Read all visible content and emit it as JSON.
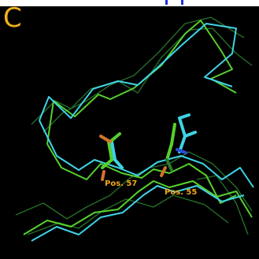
{
  "panel": {
    "label": "C"
  },
  "residues": [
    {
      "label": "Pos. 57"
    },
    {
      "label": "Pos. 55"
    }
  ],
  "colors": {
    "background": "#000000",
    "label_color": "#f0a81a",
    "backbone_cyan": "#3fd3e6",
    "backbone_green": "#56d12c",
    "backbone_darkgreen": "#2a7a2e",
    "header_blue": "#1f2fe0"
  }
}
